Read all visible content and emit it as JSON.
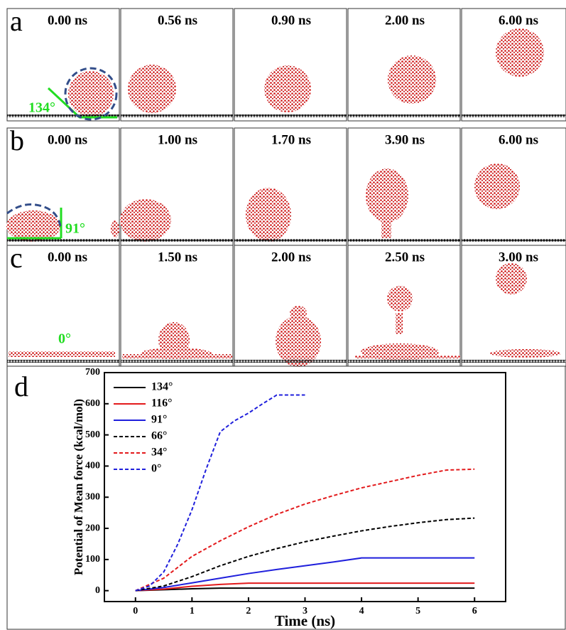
{
  "panels": {
    "a": {
      "label": "a",
      "times": [
        "0.00 ns",
        "0.56 ns",
        "0.90 ns",
        "2.00 ns",
        "6.00 ns"
      ],
      "angle": "134°"
    },
    "b": {
      "label": "b",
      "times": [
        "0.00 ns",
        "1.00 ns",
        "1.70 ns",
        "3.90 ns",
        "6.00 ns"
      ],
      "angle": "91°"
    },
    "c": {
      "label": "c",
      "times": [
        "0.00 ns",
        "1.50 ns",
        "2.00 ns",
        "2.50 ns",
        "3.00 ns"
      ],
      "angle": "0°"
    }
  },
  "chart_data": {
    "type": "line",
    "label": "d",
    "xlabel": "Time (ns)",
    "ylabel": "Potential of Mean force (kcal/mol)",
    "xlim": [
      -0.55,
      6.55
    ],
    "ylim": [
      -35,
      700
    ],
    "xticks": [
      0,
      1,
      2,
      3,
      4,
      5,
      6
    ],
    "yticks": [
      0,
      100,
      200,
      300,
      400,
      500,
      600,
      700
    ],
    "series": [
      {
        "name": "134°",
        "color": "#000000",
        "dash": false,
        "x": [
          0,
          0.5,
          1,
          1.5,
          2,
          3,
          4,
          5,
          6
        ],
        "values": [
          0,
          3,
          6,
          8,
          8,
          8,
          8,
          8,
          8
        ]
      },
      {
        "name": "116°",
        "color": "#e31a1c",
        "dash": false,
        "x": [
          0,
          0.5,
          1,
          1.5,
          2,
          3,
          4,
          5,
          6
        ],
        "values": [
          0,
          5,
          14,
          20,
          24,
          24,
          24,
          24,
          24
        ]
      },
      {
        "name": "91°",
        "color": "#1f1fdc",
        "dash": false,
        "x": [
          0,
          0.5,
          1,
          1.5,
          2,
          2.5,
          3,
          3.5,
          4,
          5,
          6
        ],
        "values": [
          0,
          10,
          25,
          40,
          55,
          68,
          80,
          92,
          105,
          105,
          105
        ]
      },
      {
        "name": "66°",
        "color": "#000000",
        "dash": true,
        "x": [
          0,
          0.5,
          1,
          1.5,
          2,
          2.5,
          3,
          3.5,
          4,
          4.5,
          5,
          5.5,
          6
        ],
        "values": [
          0,
          15,
          45,
          80,
          110,
          135,
          157,
          175,
          192,
          206,
          218,
          228,
          233
        ]
      },
      {
        "name": "34°",
        "color": "#e31a1c",
        "dash": true,
        "x": [
          0,
          0.5,
          1,
          1.5,
          2,
          2.5,
          3,
          3.5,
          4,
          4.5,
          5,
          5.5,
          6
        ],
        "values": [
          0,
          40,
          110,
          160,
          205,
          245,
          278,
          305,
          330,
          350,
          370,
          387,
          390
        ]
      },
      {
        "name": "0°",
        "color": "#1f1fdc",
        "dash": true,
        "x": [
          0,
          0.25,
          0.5,
          0.75,
          1,
          1.25,
          1.5,
          1.75,
          2,
          2.25,
          2.5,
          2.75,
          3
        ],
        "values": [
          0,
          15,
          60,
          150,
          260,
          390,
          510,
          545,
          570,
          600,
          628,
          628,
          628
        ]
      }
    ]
  }
}
